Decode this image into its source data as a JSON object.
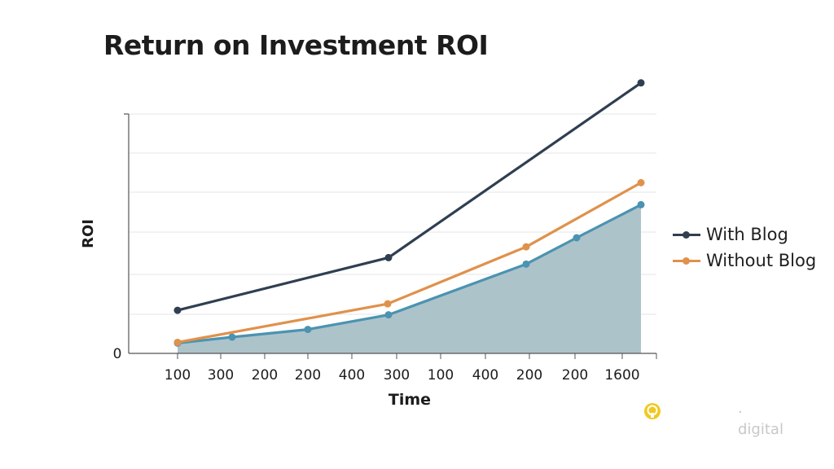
{
  "chart_data": {
    "type": "line",
    "title": "Return on Investment ROI",
    "xlabel": "Time",
    "ylabel": "ROI",
    "categories": [
      "100",
      "300",
      "200",
      "200",
      "400",
      "300",
      "100",
      "400",
      "200",
      "200",
      "1600"
    ],
    "y_ticks": [
      "0"
    ],
    "ylim": [
      0,
      100
    ],
    "grid": true,
    "legend_position": "right",
    "series": [
      {
        "name": "With Blog",
        "color": "#2f3f51",
        "points": [
          {
            "x": "100",
            "y": 18
          },
          {
            "x": "300",
            "y": 40
          },
          {
            "x": "1600",
            "y": 113
          }
        ]
      },
      {
        "name": "Without Blog",
        "color": "#e0914b",
        "points": [
          {
            "x": "100",
            "y": 4.6
          },
          {
            "x": "300",
            "y": 20.7
          },
          {
            "x": "200",
            "y": 44.5
          },
          {
            "x": "1600",
            "y": 71.3
          }
        ]
      },
      {
        "name": "",
        "color": "#4b93b0",
        "fill": "#adc3ca",
        "area": true,
        "points": [
          {
            "x": "100",
            "y": 4.3
          },
          {
            "x": "300",
            "y": 6.8
          },
          {
            "x": "200",
            "y": 10
          },
          {
            "x": "300",
            "y": 16.1
          },
          {
            "x": "200",
            "y": 37.3
          },
          {
            "x": "200",
            "y": 48.3
          },
          {
            "x": "1600",
            "y": 62.1
          }
        ]
      }
    ]
  },
  "brand": {
    "text": "· digital",
    "icon": "lightbulb-icon",
    "icon_color": "#f2c81f"
  }
}
